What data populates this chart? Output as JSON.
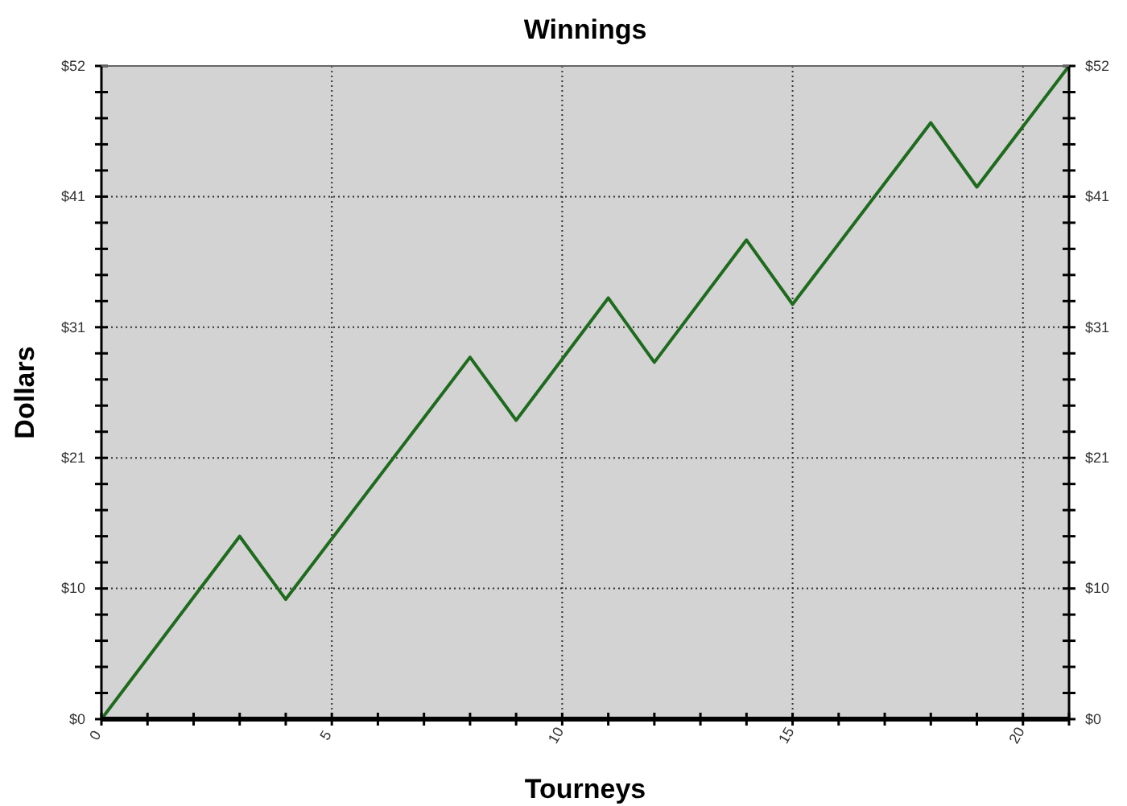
{
  "chart_data": {
    "type": "line",
    "title": "Winnings",
    "xlabel": "Tourneys",
    "ylabel": "Dollars",
    "x": [
      0,
      3,
      4,
      8,
      9,
      11,
      12,
      14,
      15,
      18,
      19,
      21
    ],
    "series": [
      {
        "color": "#1e6b1e",
        "values": [
          0,
          14.5,
          9.5,
          28.7,
          23.7,
          33.4,
          28.3,
          38.0,
          32.9,
          47.3,
          42.2,
          51.8
        ]
      }
    ],
    "xlim": [
      0,
      21
    ],
    "xticks": [
      0,
      {
        "value": 1,
        "label": null
      },
      {
        "value": 2,
        "label": null
      },
      {
        "value": 3,
        "label": null
      },
      {
        "value": 4,
        "label": null
      },
      5,
      {
        "value": 6,
        "label": null
      },
      {
        "value": 7,
        "label": null
      },
      {
        "value": 8,
        "label": null
      },
      {
        "value": 9,
        "label": null
      },
      10,
      {
        "value": 11,
        "label": null
      },
      {
        "value": 12,
        "label": null
      },
      {
        "value": 13,
        "label": null
      },
      {
        "value": 14,
        "label": null
      },
      15,
      {
        "value": 16,
        "label": null
      },
      {
        "value": 17,
        "label": null
      },
      {
        "value": 18,
        "label": null
      },
      {
        "value": 19,
        "label": null
      },
      20,
      {
        "value": 21,
        "label": null
      }
    ],
    "ylim": [
      0,
      51.8
    ],
    "yticks": [
      {
        "value": 0,
        "label": "$0"
      },
      {
        "value": 10.36,
        "label": "$10"
      },
      {
        "value": 20.72,
        "label": "$21"
      },
      {
        "value": 31.08,
        "label": "$31"
      },
      {
        "value": 41.44,
        "label": "$41"
      },
      {
        "value": 51.8,
        "label": "$52"
      }
    ],
    "y2lim": [
      0,
      51.8
    ],
    "y2ticks": [
      {
        "value": 0,
        "label": "$0"
      },
      {
        "value": 10.36,
        "label": "$10"
      },
      {
        "value": 20.72,
        "label": "$21"
      },
      {
        "value": 31.08,
        "label": "$31"
      },
      {
        "value": 41.44,
        "label": "$41"
      },
      {
        "value": 51.8,
        "label": "$52"
      }
    ],
    "grid": true,
    "line_style": "solid",
    "marker": "none"
  }
}
